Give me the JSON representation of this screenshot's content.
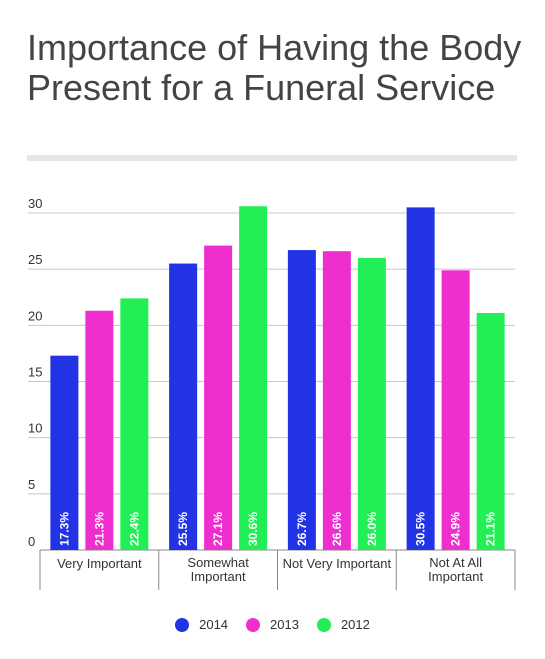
{
  "chart_data": {
    "type": "bar",
    "title": "Importance of Having the Body Present for a Funeral Service",
    "categories": [
      "Very Important",
      "Somewhat Important",
      "Not Very Important",
      "Not At All Important"
    ],
    "category_lines": [
      [
        "Very Important"
      ],
      [
        "Somewhat",
        "Important"
      ],
      [
        "Not Very Important"
      ],
      [
        "Not At All",
        "Important"
      ]
    ],
    "series": [
      {
        "name": "2014",
        "color": "#2233e6",
        "values": [
          17.3,
          25.5,
          26.7,
          30.5
        ],
        "labels": [
          "17.3%",
          "25.5%",
          "26.7%",
          "30.5%"
        ]
      },
      {
        "name": "2013",
        "color": "#ee2ecf",
        "values": [
          21.3,
          27.1,
          26.6,
          24.9
        ],
        "labels": [
          "21.3%",
          "27.1%",
          "26.6%",
          "24.9%"
        ]
      },
      {
        "name": "2012",
        "color": "#22ee55",
        "values": [
          22.4,
          30.6,
          26.0,
          21.1
        ],
        "labels": [
          "22.4%",
          "30.6%",
          "26.0%",
          "21.1%"
        ]
      }
    ],
    "yticks": [
      0,
      5,
      10,
      15,
      20,
      25,
      30
    ],
    "ylim": [
      0,
      30
    ],
    "grid": true,
    "legend": "bottom"
  }
}
